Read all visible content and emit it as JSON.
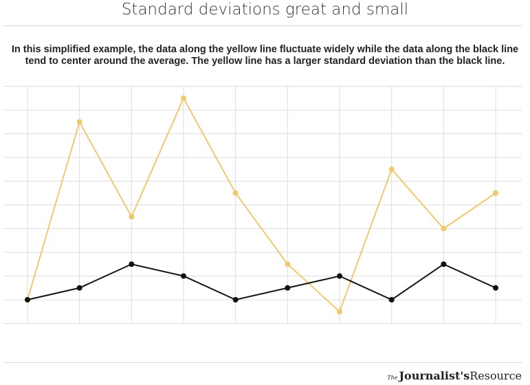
{
  "header": {
    "title": "Standard deviations great and small",
    "subtitle_line1": "In this simplified example, the data along the yellow line fluctuate widely while the data along the black line",
    "subtitle_line2": "tend to center around the average. The yellow line has a larger standard deviation than the black line."
  },
  "branding": {
    "the": "The",
    "name_bold": "Journalist's",
    "name_rest": "Resource"
  },
  "chart_data": {
    "type": "line",
    "title": "Standard deviations great and small",
    "x": [
      1,
      2,
      3,
      4,
      5,
      6,
      7,
      8,
      9,
      10
    ],
    "ylim": [
      -1,
      9
    ],
    "grid": true,
    "series": [
      {
        "color": "#f0c96e",
        "values": [
          0,
          7.5,
          3.5,
          8.5,
          4.5,
          1.5,
          -0.5,
          5.5,
          3,
          4.5
        ]
      },
      {
        "color": "#111111",
        "values": [
          0,
          0.5,
          1.5,
          1,
          0,
          0.5,
          1,
          0,
          1.5,
          0.5
        ]
      }
    ]
  }
}
